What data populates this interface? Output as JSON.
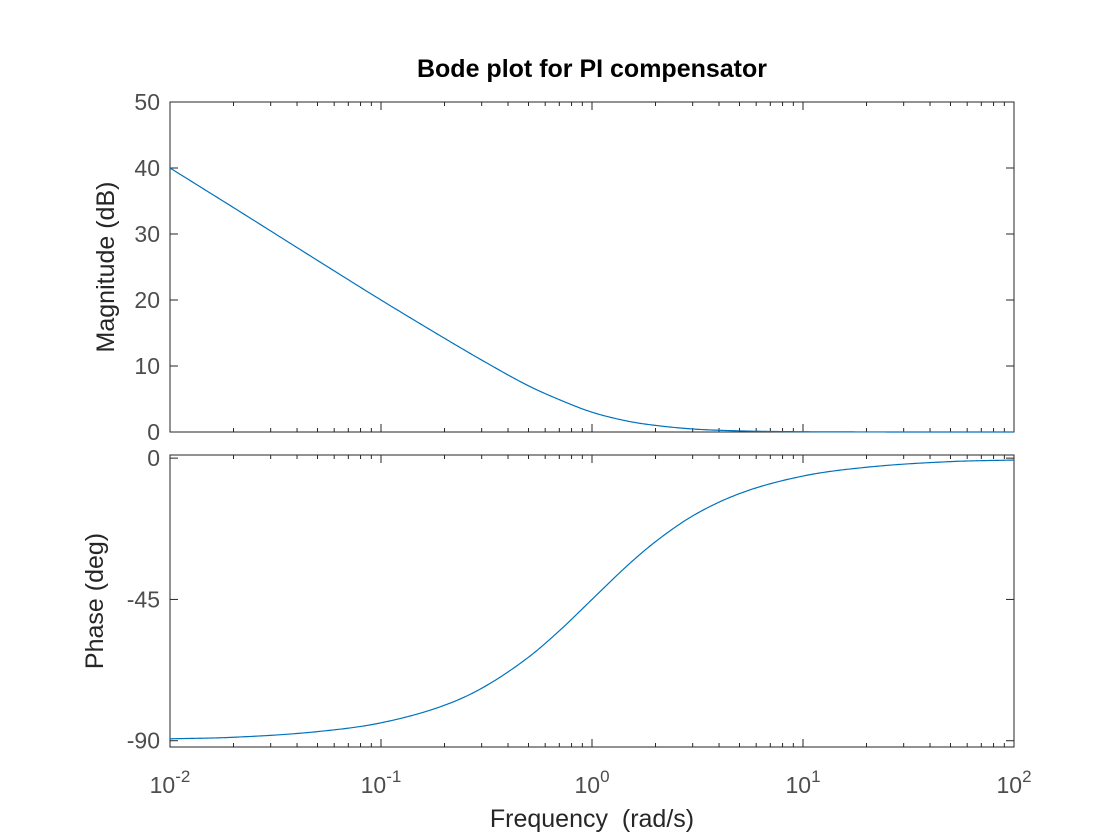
{
  "chart_data": {
    "type": "line",
    "title": "Bode plot for PI compensator",
    "xlabel": "Frequency  (rad/s)",
    "x_scale": "log",
    "xlim": [
      0.01,
      100
    ],
    "x_ticks": [
      {
        "value": 0.01,
        "base": "10",
        "exp": "-2"
      },
      {
        "value": 0.1,
        "base": "10",
        "exp": "-1"
      },
      {
        "value": 1,
        "base": "10",
        "exp": "0"
      },
      {
        "value": 10,
        "base": "10",
        "exp": "1"
      },
      {
        "value": 100,
        "base": "10",
        "exp": "2"
      }
    ],
    "color": "#0072bd",
    "panels": [
      {
        "name": "magnitude",
        "ylabel": "Magnitude (dB)",
        "ylim": [
          0,
          50
        ],
        "y_ticks": [
          {
            "value": 0,
            "label": "0"
          },
          {
            "value": 10,
            "label": "10"
          },
          {
            "value": 20,
            "label": "20"
          },
          {
            "value": 30,
            "label": "30"
          },
          {
            "value": 40,
            "label": "40"
          },
          {
            "value": 50,
            "label": "50"
          }
        ],
        "x": [
          0.01,
          0.02,
          0.05,
          0.1,
          0.2,
          0.3,
          0.5,
          0.7,
          1,
          1.5,
          2,
          3,
          5,
          10,
          20,
          50,
          100
        ],
        "y": [
          40.0,
          34.0,
          26.0,
          20.0,
          14.2,
          10.9,
          7.0,
          4.9,
          3.0,
          1.6,
          1.0,
          0.46,
          0.17,
          0.04,
          0.01,
          0.0,
          0.0
        ]
      },
      {
        "name": "phase",
        "ylabel": "Phase (deg)",
        "ylim": [
          -92,
          1
        ],
        "y_ticks": [
          {
            "value": -90,
            "label": "-90"
          },
          {
            "value": -45,
            "label": "-45"
          },
          {
            "value": 0,
            "label": "0"
          }
        ],
        "x": [
          0.01,
          0.02,
          0.05,
          0.1,
          0.2,
          0.3,
          0.5,
          0.7,
          1,
          1.5,
          2,
          3,
          5,
          10,
          20,
          50,
          100
        ],
        "y": [
          -89.4,
          -88.9,
          -87.1,
          -84.3,
          -78.7,
          -73.3,
          -63.4,
          -55.0,
          -45.0,
          -33.7,
          -26.6,
          -18.4,
          -11.3,
          -5.7,
          -2.9,
          -1.1,
          -0.6
        ]
      }
    ]
  }
}
